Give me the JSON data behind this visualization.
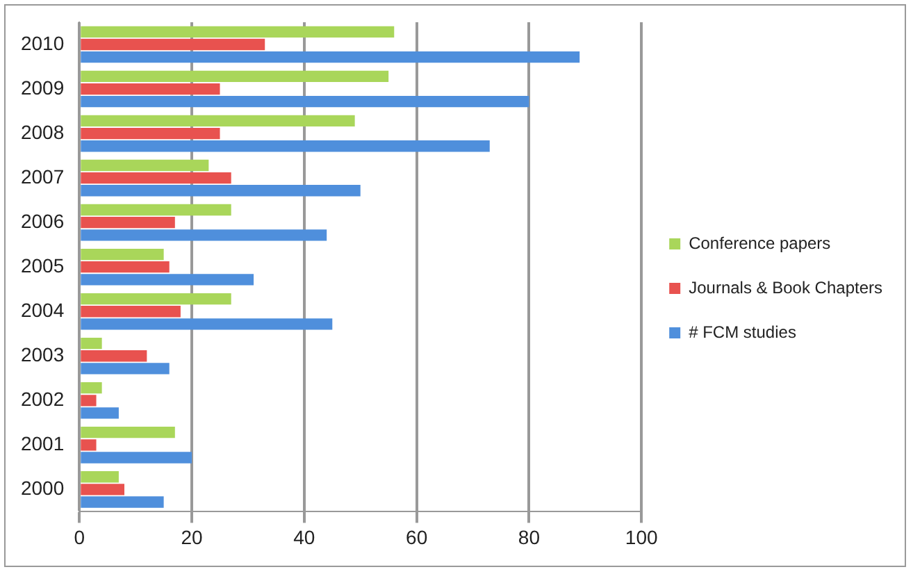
{
  "chart_data": {
    "type": "bar",
    "orientation": "horizontal",
    "categories": [
      "2010",
      "2009",
      "2008",
      "2007",
      "2006",
      "2005",
      "2004",
      "2003",
      "2002",
      "2001",
      "2000"
    ],
    "series": [
      {
        "name": "Conference papers",
        "color": "#a9d65a",
        "values": [
          56,
          55,
          49,
          23,
          27,
          15,
          27,
          4,
          4,
          17,
          7
        ]
      },
      {
        "name": "Journals & Book Chapters",
        "color": "#e8524f",
        "values": [
          33,
          25,
          25,
          27,
          17,
          16,
          18,
          12,
          3,
          3,
          8
        ]
      },
      {
        "name": "# FCM studies",
        "color": "#4f8fdc",
        "values": [
          89,
          80,
          73,
          50,
          44,
          31,
          45,
          16,
          7,
          20,
          15
        ]
      }
    ],
    "xlim": [
      0,
      100
    ],
    "xticks": [
      0,
      20,
      40,
      60,
      80,
      100
    ],
    "grid": "x",
    "legend": "right"
  }
}
